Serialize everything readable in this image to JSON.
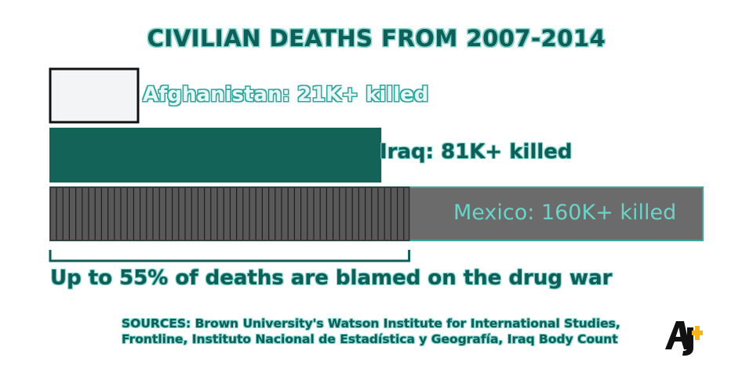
{
  "chart_data": {
    "type": "bar",
    "orientation": "horizontal",
    "title": "CIVILIAN DEATHS FROM 2007-2014",
    "categories": [
      "Afghanistan",
      "Iraq",
      "Mexico"
    ],
    "values": [
      21000,
      81000,
      160000
    ],
    "labels": [
      "Afghanistan: 21K+ killed",
      "Iraq: 81K+ killed",
      "Mexico: 160K+ killed"
    ],
    "colors": [
      "#f3f4f6",
      "#136358",
      "#6b6b6b"
    ],
    "highlight": {
      "category": "Mexico",
      "fraction": 0.55,
      "text": "Up to 55% of deaths are blamed on the drug war"
    },
    "xlim": [
      0,
      160000
    ],
    "grid": false
  },
  "sources": "SOURCES: Brown University's Watson Institute for International Studies, Frontline, Instituto Nacional de Estadística y Geografía, Iraq Body Count",
  "logo": {
    "icon": "al-jazeera-plus-logo",
    "text": "AJ+",
    "accent": "#f5b51b"
  }
}
